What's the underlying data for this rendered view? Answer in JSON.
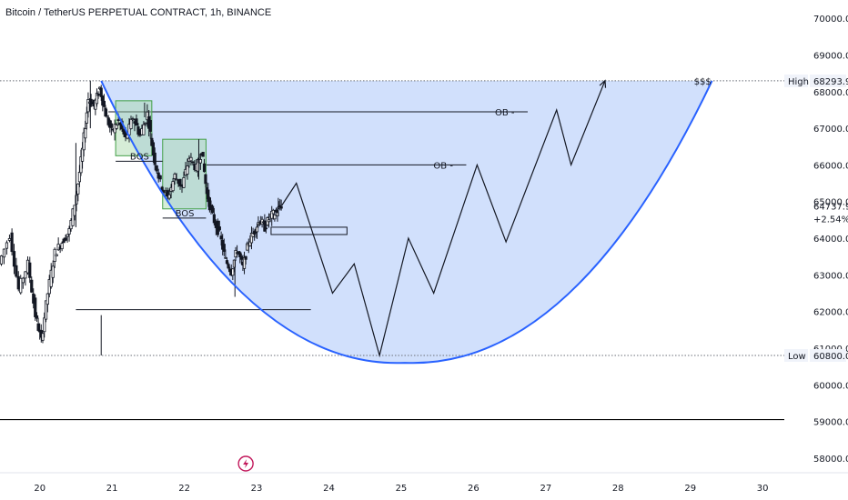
{
  "title": "Bitcoin / TetherUS PERPETUAL CONTRACT, 1h, BINANCE",
  "chart_data": {
    "type": "candlestick",
    "title": "Bitcoin / TetherUS PERPETUAL CONTRACT, 1h, BINANCE",
    "xlabel": "",
    "ylabel": "",
    "x_ticks": [
      "20",
      "21",
      "22",
      "23",
      "24",
      "25",
      "26",
      "27",
      "28",
      "29",
      "30"
    ],
    "y_ticks": [
      "58000.0",
      "59000.0",
      "60000.0",
      "61000.0",
      "62000.0",
      "63000.0",
      "64000.0",
      "65000.0",
      "66000.0",
      "67000.0",
      "68000.0",
      "69000.0",
      "70000.0"
    ],
    "ylim": [
      57600,
      70500
    ],
    "xlim": [
      19.45,
      30.3
    ],
    "grid": false,
    "colors": {
      "up": "#26a69a",
      "down": "#ef5350",
      "curve": "#2962ff",
      "fill": "#c9dafc"
    },
    "markers": {
      "high": 68293.9,
      "low": 60800.0,
      "last": 64737.9
    },
    "labels": {
      "high_tag": "High",
      "high_value": "68293.9",
      "low_tag": "Low",
      "low_value": "60800.0",
      "last_value": "64737.9",
      "last_change": "+2.54%",
      "sss": "$$$",
      "ob": "OB -",
      "bos": "BOS"
    },
    "price_series": [
      [
        19.45,
        63300
      ],
      [
        19.6,
        64100
      ],
      [
        19.72,
        62600
      ],
      [
        19.85,
        63300
      ],
      [
        19.95,
        61900
      ],
      [
        20.03,
        61200
      ],
      [
        20.12,
        62500
      ],
      [
        20.22,
        63600
      ],
      [
        20.32,
        63900
      ],
      [
        20.42,
        64200
      ],
      [
        20.52,
        65200
      ],
      [
        20.6,
        66400
      ],
      [
        20.68,
        67800
      ],
      [
        20.76,
        67600
      ],
      [
        20.84,
        68100
      ],
      [
        20.92,
        67400
      ],
      [
        21.0,
        66900
      ],
      [
        21.1,
        67200
      ],
      [
        21.2,
        66700
      ],
      [
        21.3,
        67300
      ],
      [
        21.4,
        66800
      ],
      [
        21.5,
        67400
      ],
      [
        21.58,
        66300
      ],
      [
        21.68,
        65500
      ],
      [
        21.78,
        65100
      ],
      [
        21.88,
        65700
      ],
      [
        21.98,
        65400
      ],
      [
        22.08,
        66200
      ],
      [
        22.18,
        65900
      ],
      [
        22.25,
        66400
      ],
      [
        22.32,
        65200
      ],
      [
        22.4,
        64600
      ],
      [
        22.5,
        64100
      ],
      [
        22.58,
        63400
      ],
      [
        22.66,
        63100
      ],
      [
        22.74,
        63700
      ],
      [
        22.82,
        63200
      ],
      [
        22.9,
        63900
      ],
      [
        22.98,
        64200
      ],
      [
        23.05,
        64500
      ],
      [
        23.12,
        64300
      ],
      [
        23.2,
        64600
      ],
      [
        23.28,
        64700
      ],
      [
        23.35,
        64900
      ]
    ],
    "candle_high_low": [
      [
        20.5,
        64300,
        66600
      ],
      [
        20.7,
        67000,
        68300
      ],
      [
        20.85,
        60800,
        61900
      ],
      [
        21.45,
        67300,
        67700
      ],
      [
        22.2,
        65600,
        66700
      ],
      [
        22.7,
        62400,
        63400
      ],
      [
        23.3,
        64600,
        65100
      ]
    ],
    "projected_path": [
      [
        23.35,
        64900
      ],
      [
        23.55,
        65500
      ],
      [
        24.05,
        62500
      ],
      [
        24.35,
        63300
      ],
      [
        24.7,
        60800
      ],
      [
        25.1,
        64000
      ],
      [
        25.45,
        62500
      ],
      [
        26.05,
        66000
      ],
      [
        26.45,
        63900
      ],
      [
        27.15,
        67500
      ],
      [
        27.35,
        66000
      ],
      [
        27.82,
        68300
      ]
    ],
    "bowl_curve": {
      "left": [
        20.85,
        68293.9
      ],
      "bottom": [
        25.05,
        60600
      ],
      "right": [
        29.3,
        68293.9
      ]
    },
    "levels": [
      {
        "name": "high-line",
        "y": 68293.9,
        "x_from": 19.45,
        "x_to": 30.3,
        "style": "dotted"
      },
      {
        "name": "low-line",
        "y": 60800.0,
        "x_from": 19.45,
        "x_to": 30.3,
        "style": "dotted"
      },
      {
        "name": "base-line",
        "y": 59050,
        "x_from": 19.45,
        "x_to": 30.3,
        "style": "solid"
      },
      {
        "name": "ob-line-1",
        "y": 67450,
        "x_from": 20.95,
        "x_to": 26.75,
        "label": "OB -"
      },
      {
        "name": "ob-line-2",
        "y": 66000,
        "x_from": 22.3,
        "x_to": 25.9,
        "label": "OB -"
      },
      {
        "name": "support-line",
        "y": 62050,
        "x_from": 20.5,
        "x_to": 23.75
      }
    ],
    "zones": [
      {
        "name": "order-block-1",
        "x1": 21.05,
        "x2": 21.55,
        "y1": 66250,
        "y2": 67750
      },
      {
        "name": "order-block-2",
        "x1": 21.7,
        "x2": 22.3,
        "y1": 64800,
        "y2": 66700
      }
    ],
    "bos": [
      {
        "y": 66100,
        "x_from": 21.05,
        "x_to": 21.7
      },
      {
        "y": 64550,
        "x_from": 21.7,
        "x_to": 22.3
      }
    ],
    "small_box": {
      "x1": 23.2,
      "x2": 24.25,
      "y1": 64100,
      "y2": 64300
    }
  }
}
